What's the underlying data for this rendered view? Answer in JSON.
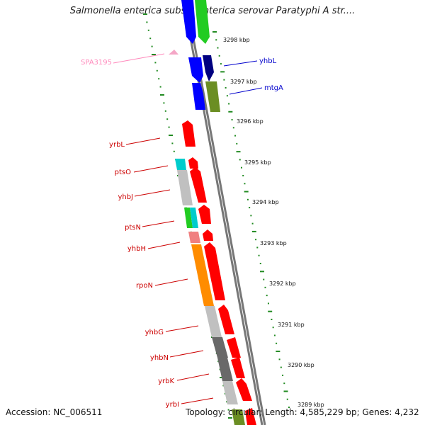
{
  "title": "Salmonella enterica subsp. enterica serovar Paratyphi A str....",
  "footer": {
    "accession": "Accession: NC_006511",
    "topology": "Topology: circular; Length: 4,585,229 bp; Genes: 4,232"
  },
  "colors": {
    "backbone": "#777777",
    "tick": "#228B22",
    "label_left": "#cc0000",
    "label_right": "#0000cc",
    "label_pink": "#ff88bb"
  },
  "kbp_ticks": [
    "3298 kbp",
    "3297 kbp",
    "3296 kbp",
    "3295 kbp",
    "3294 kbp",
    "3293 kbp",
    "3292 kbp",
    "3291 kbp",
    "3290 kbp",
    "3289 kbp"
  ],
  "labels_left": [
    "SPA3195",
    "yrbL",
    "ptsO",
    "yhbJ",
    "ptsN",
    "yhbH",
    "rpoN",
    "yhbG",
    "yhbN",
    "yrbK",
    "yrbI"
  ],
  "labels_right": [
    "yhbL",
    "mtgA"
  ],
  "gene_colors": [
    "#0000ff",
    "#22cc22",
    "#000080",
    "#6b8e23",
    "#ff0000",
    "#00cccc",
    "#c0c0c0",
    "#f08080",
    "#ff8c00",
    "#696969",
    "#f4a6c6"
  ]
}
